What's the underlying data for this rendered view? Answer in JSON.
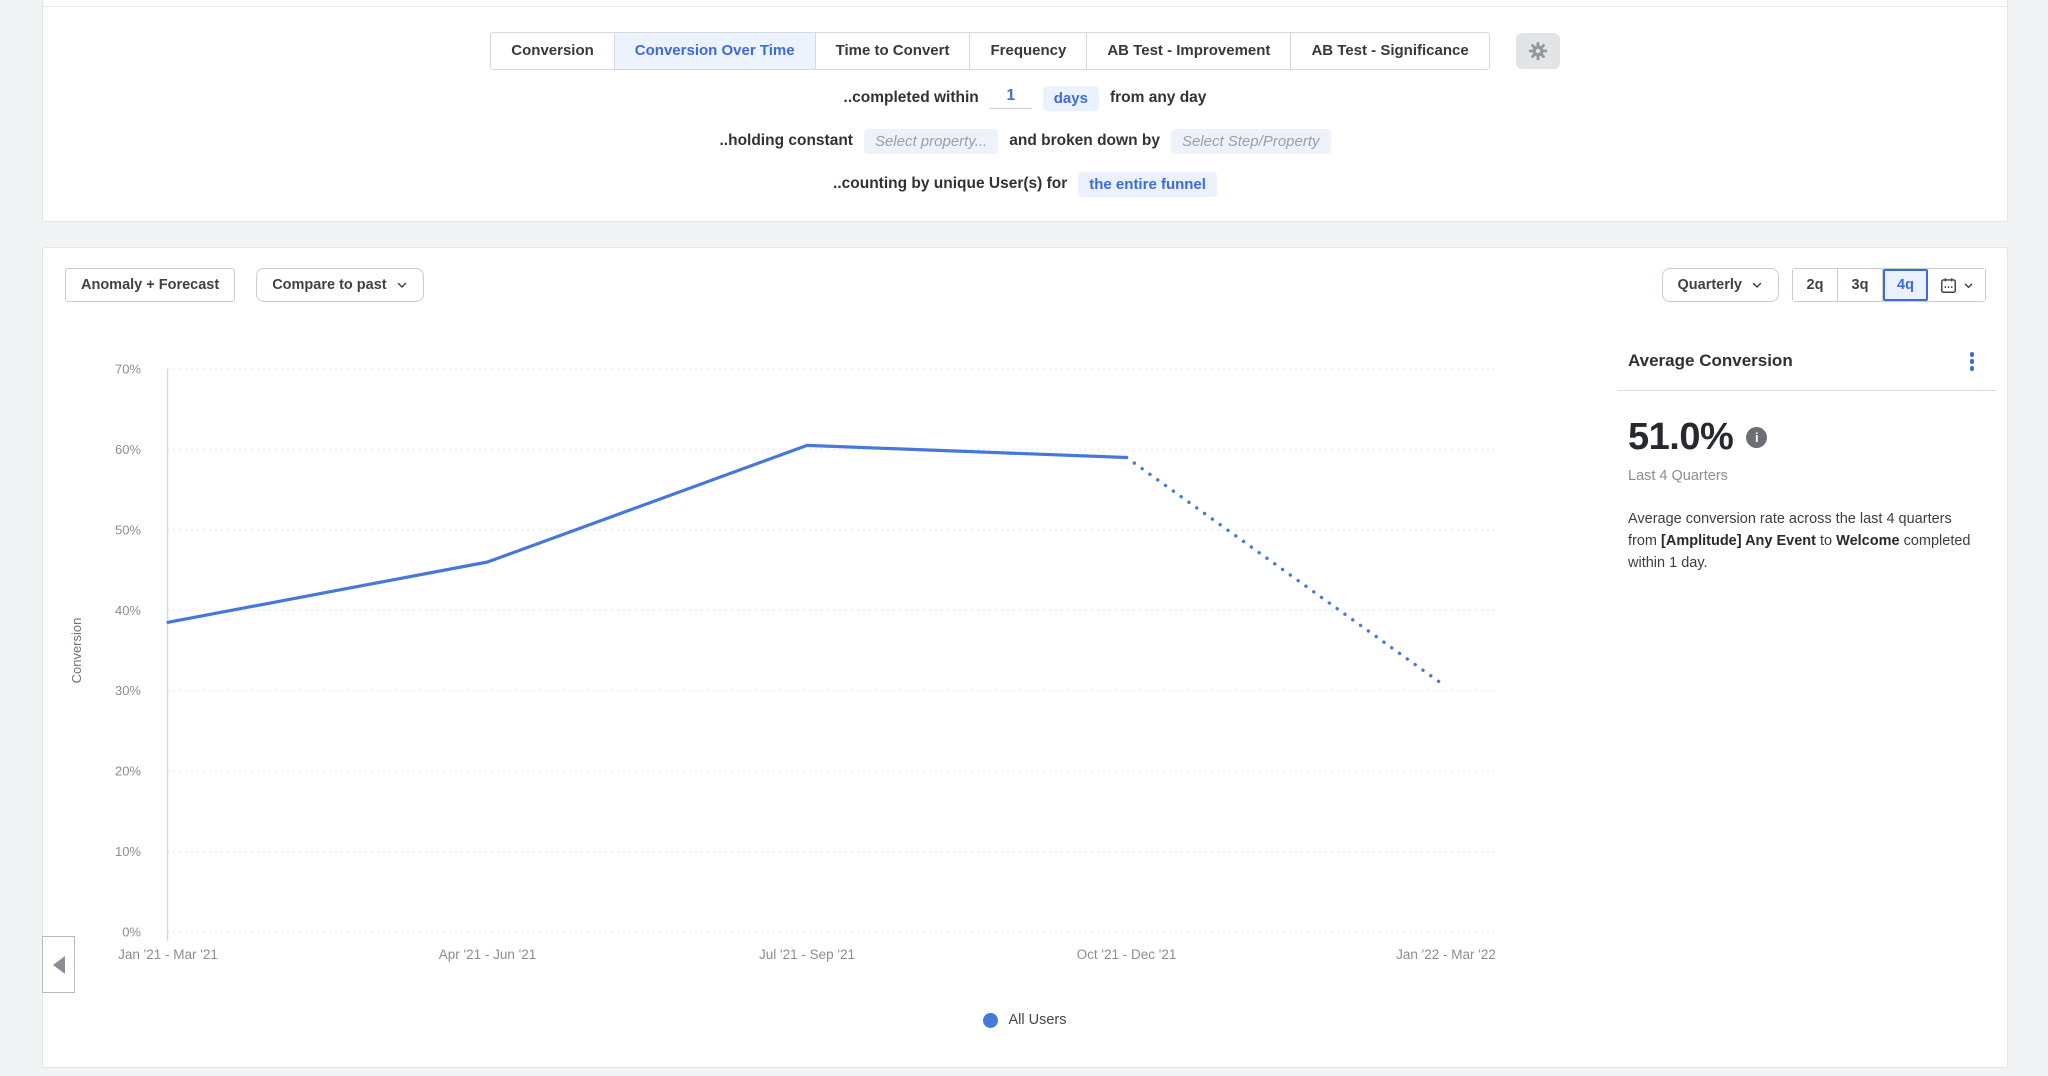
{
  "accent": {
    "blue": "#3d6bd8",
    "blue_bg": "#ebf2fd",
    "line_blue": "#4678d9"
  },
  "tabs_bar": {
    "tabs": [
      {
        "label": "Conversion",
        "selected": false
      },
      {
        "label": "Conversion Over Time",
        "selected": true
      },
      {
        "label": "Time to Convert",
        "selected": false
      },
      {
        "label": "Frequency",
        "selected": false
      },
      {
        "label": "AB Test - Improvement",
        "selected": false
      },
      {
        "label": "AB Test - Significance",
        "selected": false
      }
    ],
    "settings_icon": "gear-icon"
  },
  "query": {
    "row1": {
      "prefix": "..completed within",
      "value": "1",
      "unit": "days",
      "suffix": "from any day"
    },
    "row2": {
      "prefix": "..holding constant",
      "placeholder1": "Select property...",
      "connector": "and broken down by",
      "placeholder2": "Select Step/Property"
    },
    "row3": {
      "prefix": "..counting by unique User(s) for",
      "value": "the entire funnel"
    }
  },
  "toolbar": {
    "anomaly_label": "Anomaly + Forecast",
    "compare_label": "Compare to past",
    "interval_label": "Quarterly",
    "ranges": [
      "2q",
      "3q",
      "4q"
    ],
    "selected_range": "4q",
    "calendar_icon": "calendar-icon"
  },
  "summary": {
    "title": "Average Conversion",
    "value": "51.0%",
    "period": "Last 4 Quarters",
    "description": [
      {
        "text": "Average conversion rate across the last 4 quarters from ",
        "bold": false
      },
      {
        "text": "[Amplitude] Any Event",
        "bold": true
      },
      {
        "text": " to ",
        "bold": false
      },
      {
        "text": "Welcome",
        "bold": true
      },
      {
        "text": " completed within 1 day.",
        "bold": false
      }
    ]
  },
  "chart_data": {
    "type": "line",
    "title": "Conversion Over Time",
    "xlabel": "",
    "ylabel": "Conversion",
    "ylim": [
      0,
      70
    ],
    "y_ticks": [
      0,
      10,
      20,
      30,
      40,
      50,
      60,
      70
    ],
    "y_tick_suffix": "%",
    "grid": true,
    "legend_position": "bottom",
    "categories": [
      "Jan '21 - Mar '21",
      "Apr '21 - Jun '21",
      "Jul '21 - Sep '21",
      "Oct '21 - Dec '21",
      "Jan '22 - Mar '22"
    ],
    "series": [
      {
        "name": "All Users",
        "color": "#4678d9",
        "values": [
          38.5,
          46.0,
          60.5,
          59.0,
          30.5
        ],
        "forecast_from_index": 3
      }
    ]
  },
  "legend": [
    {
      "label": "All Users",
      "color": "#4678d9"
    }
  ]
}
